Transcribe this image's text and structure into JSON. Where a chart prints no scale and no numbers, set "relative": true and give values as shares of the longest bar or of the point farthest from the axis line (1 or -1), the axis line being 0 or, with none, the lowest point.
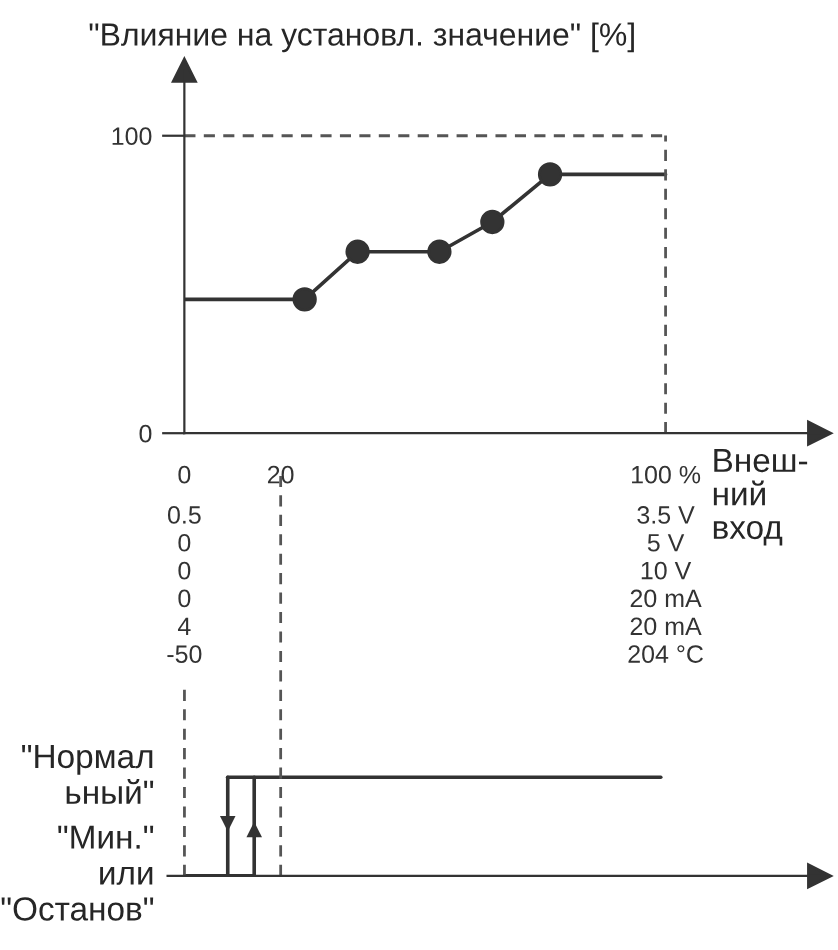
{
  "chart_data": [
    {
      "type": "line",
      "title": "\"Влияние на установл. значение\" [%]",
      "xlabel": "Внеш-\nний\nвход",
      "xlim": [
        0,
        132
      ],
      "ylim": [
        0,
        122
      ],
      "xticks": [
        0,
        20,
        {
          "value": 100,
          "label": "100 %"
        }
      ],
      "annotations": [
        "0.5\n0\n0\n0\n4\n-50",
        "3.5 V\n5 V\n10 V\n20 mA\n20 mA\n204 °C"
      ],
      "yticks": [
        0,
        100
      ],
      "grid": false,
      "marker": "none",
      "line_style": "solid",
      "series": [
        {
          "type": "line",
          "color": "#333333",
          "x": [
            0,
            25,
            36,
            53,
            64,
            76,
            100
          ],
          "values": [
            45,
            45,
            61,
            61,
            71,
            87,
            87
          ]
        },
        {
          "type": "scatter",
          "color": "#333333",
          "marker": "circle",
          "x": [
            25,
            36,
            53,
            64,
            76
          ],
          "values": [
            45,
            61,
            61,
            71,
            87
          ]
        }
      ],
      "ref_lines": [
        {
          "axis": "y",
          "value": 100,
          "color": "#555555",
          "line_style": "dashed"
        },
        {
          "axis": "x",
          "value": 100,
          "color": "#555555",
          "line_style": "dashed"
        }
      ]
    },
    {
      "type": "line",
      "relative": true,
      "xlim": [
        -3.5,
        132
      ],
      "xticks": [
        0,
        20
      ],
      "tick_labels": false,
      "grid": false,
      "line_style": "solid",
      "annotations": [
        "\"Нормал\nьный\"",
        "\"Мин.\"\nили\n\"Останов\""
      ],
      "series": [
        {
          "color": "#333333",
          "x": [
            0,
            14.5
          ],
          "values": [
            0,
            0
          ]
        },
        {
          "color": "#333333",
          "x": [
            14.5,
            14.5
          ],
          "values": [
            0,
            1
          ]
        },
        {
          "color": "#333333",
          "x": [
            9,
            99
          ],
          "values": [
            1,
            1
          ]
        },
        {
          "color": "#333333",
          "x": [
            9,
            9
          ],
          "values": [
            1,
            0
          ]
        }
      ],
      "ref_lines": [
        {
          "axis": "x",
          "value": 0,
          "color": "#555555",
          "line_style": "dashed"
        },
        {
          "axis": "x",
          "value": 20,
          "color": "#555555",
          "line_style": "dashed"
        }
      ]
    }
  ]
}
